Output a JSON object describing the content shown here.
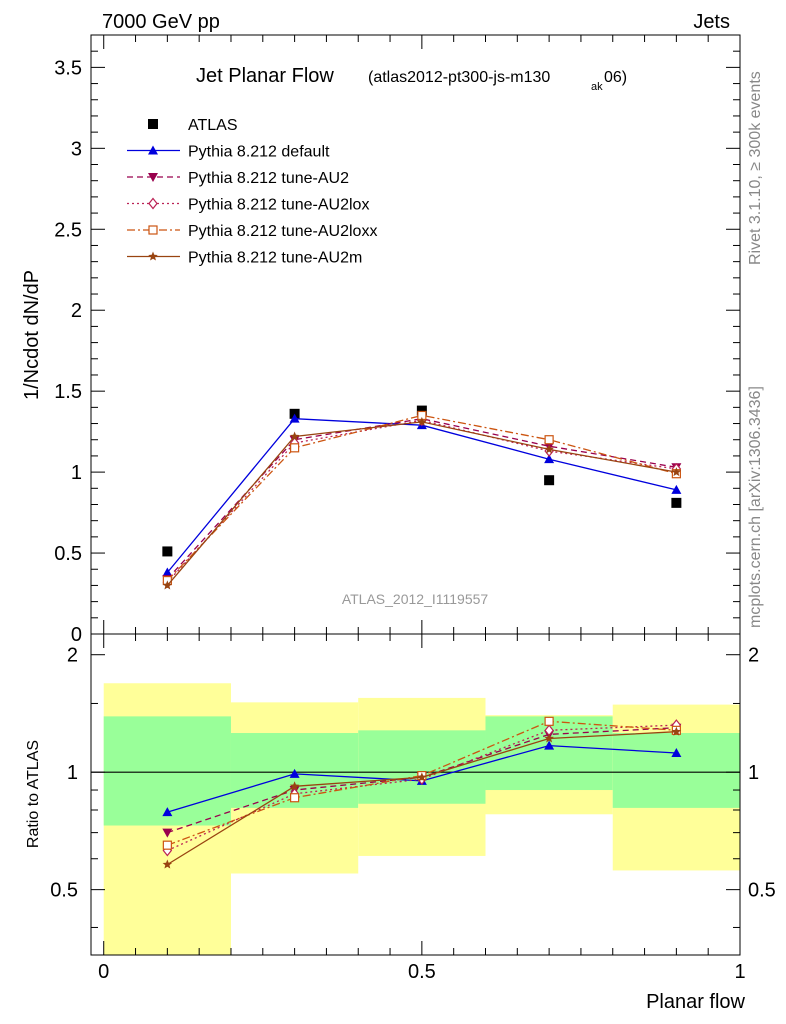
{
  "header": {
    "left": "7000 GeV pp",
    "right": "Jets"
  },
  "side_labels": {
    "rivet": "Rivet 3.1.10, ≥ 300k events",
    "mcplots": "mcplots.cern.ch [arXiv:1306.3436]"
  },
  "chart_data": [
    {
      "type": "line",
      "title": "Jet Planar Flow",
      "subtitle_main": "(atlas2012-pt300-js-m130",
      "subtitle_sub": "ak",
      "subtitle_end": "06)",
      "watermark": "ATLAS_2012_I1119557",
      "ylabel": "1/Ncdot dN/dP",
      "xlabel": "",
      "xlim": [
        -0.02,
        1.0
      ],
      "ylim": [
        0,
        3.7
      ],
      "yticks": [
        0,
        0.5,
        1,
        1.5,
        2,
        2.5,
        3,
        3.5
      ],
      "ytick_labels": [
        "0",
        "0.5",
        "1",
        "1.5",
        "2",
        "2.5",
        "3",
        "3.5"
      ],
      "legend_position": "top-left",
      "x": [
        0.1,
        0.3,
        0.5,
        0.7,
        0.9
      ],
      "series": [
        {
          "name": "ATLAS",
          "values": [
            0.51,
            1.36,
            1.38,
            0.95,
            0.81
          ],
          "color": "#000000",
          "marker": "square",
          "dash": "none"
        },
        {
          "name": "Pythia 8.212 default",
          "values": [
            0.38,
            1.33,
            1.29,
            1.08,
            0.89
          ],
          "color": "#0000dd",
          "marker": "triangle-up",
          "dash": "solid"
        },
        {
          "name": "Pythia 8.212 tune-AU2",
          "values": [
            0.34,
            1.2,
            1.33,
            1.16,
            1.03
          ],
          "color": "#99004d",
          "marker": "triangle-down",
          "dash": "dashed"
        },
        {
          "name": "Pythia 8.212 tune-AU2lox",
          "values": [
            0.32,
            1.18,
            1.32,
            1.13,
            1.02
          ],
          "color": "#bb2255",
          "marker": "diamond",
          "dash": "dotted"
        },
        {
          "name": "Pythia 8.212 tune-AU2loxx",
          "values": [
            0.33,
            1.15,
            1.35,
            1.2,
            0.99
          ],
          "color": "#cc5511",
          "marker": "square-open",
          "dash": "dashdot"
        },
        {
          "name": "Pythia 8.212 tune-AU2m",
          "values": [
            0.3,
            1.22,
            1.31,
            1.14,
            1.0
          ],
          "color": "#994411",
          "marker": "star",
          "dash": "solid"
        }
      ]
    },
    {
      "type": "line",
      "title": "",
      "ylabel": "Ratio to ATLAS",
      "xlabel": "Planar flow",
      "xlim": [
        -0.02,
        1.0
      ],
      "ylim": [
        0.34,
        2.26
      ],
      "yticks": [
        0.5,
        1,
        2
      ],
      "ytick_labels": [
        "0.5",
        "1",
        "2"
      ],
      "xticks": [
        0,
        0.5,
        1
      ],
      "xtick_labels": [
        "0",
        "0.5",
        "1"
      ],
      "reference_line": 1,
      "bands": [
        {
          "x0": 0.0,
          "x1": 0.2,
          "green": [
            0.73,
            1.39
          ],
          "yellow": [
            0.34,
            1.69
          ]
        },
        {
          "x0": 0.2,
          "x1": 0.4,
          "green": [
            0.81,
            1.26
          ],
          "yellow": [
            0.55,
            1.51
          ]
        },
        {
          "x0": 0.4,
          "x1": 0.6,
          "green": [
            0.83,
            1.28
          ],
          "yellow": [
            0.61,
            1.55
          ]
        },
        {
          "x0": 0.6,
          "x1": 0.8,
          "green": [
            0.9,
            1.39
          ],
          "yellow": [
            0.78,
            1.4
          ]
        },
        {
          "x0": 0.8,
          "x1": 1.0,
          "green": [
            0.81,
            1.26
          ],
          "yellow": [
            0.56,
            1.49
          ]
        }
      ],
      "x": [
        0.1,
        0.3,
        0.5,
        0.7,
        0.9
      ],
      "series": [
        {
          "name": "Pythia 8.212 default",
          "values": [
            0.79,
            0.99,
            0.95,
            1.17,
            1.12
          ],
          "color": "#0000dd",
          "marker": "triangle-up",
          "dash": "solid"
        },
        {
          "name": "Pythia 8.212 tune-AU2",
          "values": [
            0.7,
            0.9,
            0.97,
            1.25,
            1.3
          ],
          "color": "#99004d",
          "marker": "triangle-down",
          "dash": "dashed"
        },
        {
          "name": "Pythia 8.212 tune-AU2lox",
          "values": [
            0.63,
            0.88,
            0.96,
            1.28,
            1.32
          ],
          "color": "#bb2255",
          "marker": "diamond",
          "dash": "dotted"
        },
        {
          "name": "Pythia 8.212 tune-AU2loxx",
          "values": [
            0.65,
            0.86,
            0.98,
            1.35,
            1.28
          ],
          "color": "#cc5511",
          "marker": "square-open",
          "dash": "dashdot"
        },
        {
          "name": "Pythia 8.212 tune-AU2m",
          "values": [
            0.58,
            0.92,
            0.97,
            1.22,
            1.27
          ],
          "color": "#994411",
          "marker": "star",
          "dash": "solid"
        }
      ]
    }
  ]
}
